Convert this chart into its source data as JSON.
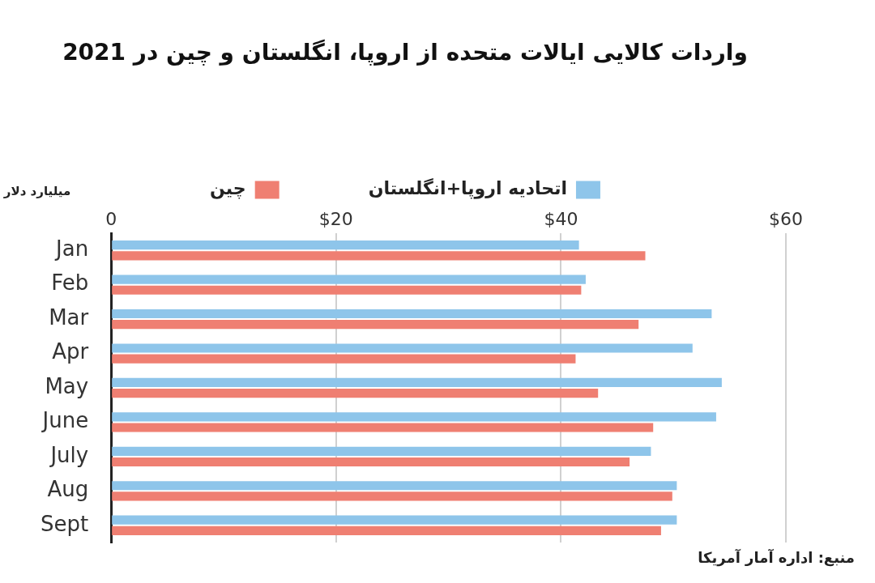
{
  "chart_data": {
    "type": "bar",
    "orientation": "horizontal",
    "title": "واردات کالایی ایالات متحده از اروپا، انگلستان و چین در 2021",
    "xlabel": "میلیارد دلار",
    "categories": [
      "Jan",
      "Feb",
      "Mar",
      "Apr",
      "May",
      "June",
      "July",
      "Aug",
      "Sept"
    ],
    "series": [
      {
        "name": "اتحادیه اروپا+انگلستان",
        "color": "#8ec5ea",
        "values": [
          41.6,
          42.2,
          53.4,
          51.7,
          54.3,
          53.8,
          48.0,
          50.3,
          50.3
        ]
      },
      {
        "name": "چین",
        "color": "#ef7f72",
        "values": [
          47.5,
          41.8,
          46.9,
          41.3,
          43.3,
          48.2,
          46.1,
          49.9,
          48.9
        ]
      }
    ],
    "xlim": [
      0,
      60
    ],
    "xticks": [
      0,
      {
        "value": 20,
        "label": "$20"
      },
      {
        "value": 40,
        "label": "$40"
      },
      {
        "value": 60,
        "label": "$60"
      }
    ],
    "grid": "x",
    "legend": "top",
    "annotations": [
      "منبع: اداره آمار آمریکا"
    ]
  }
}
